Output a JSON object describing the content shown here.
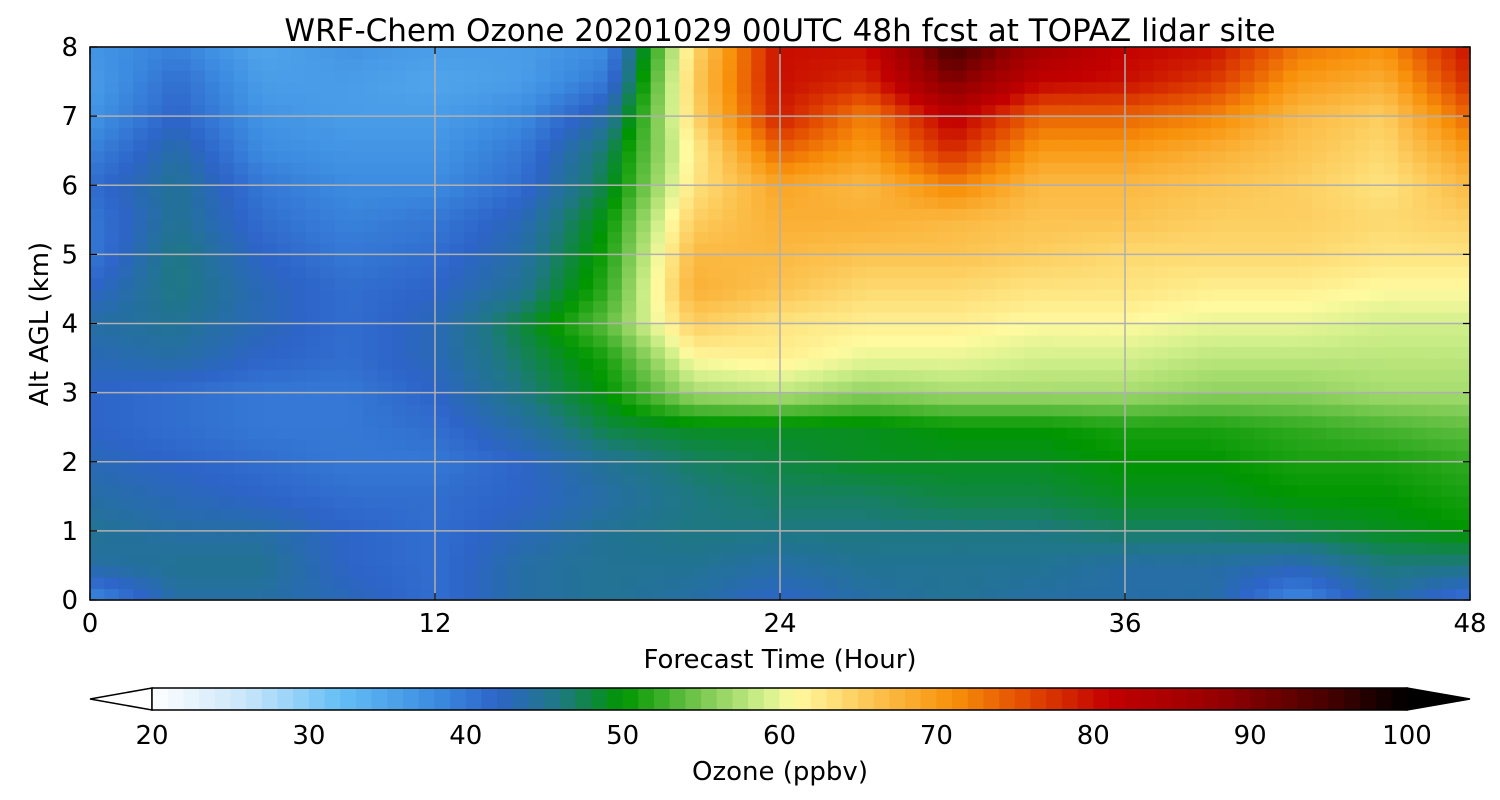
{
  "chart_data": {
    "type": "heatmap",
    "title": "WRF-Chem Ozone 20201029 00UTC 48h fcst at TOPAZ lidar site",
    "xlabel": "Forecast Time (Hour)",
    "ylabel": "Alt AGL (km)",
    "xlim": [
      0,
      48
    ],
    "ylim": [
      0,
      8
    ],
    "x_ticks": [
      "0",
      "12",
      "24",
      "36",
      "48"
    ],
    "y_ticks": [
      "0",
      "1",
      "2",
      "3",
      "4",
      "5",
      "6",
      "7",
      "8"
    ],
    "grid": true,
    "colorbar": {
      "label": "Ozone  (ppbv)",
      "range": [
        20,
        100
      ],
      "extend": "both",
      "ticks": [
        "20",
        "30",
        "40",
        "50",
        "60",
        "70",
        "80",
        "90",
        "100"
      ]
    },
    "x": [
      0,
      3,
      6,
      9,
      12,
      15,
      18,
      21,
      24,
      27,
      30,
      33,
      36,
      39,
      42,
      45,
      48
    ],
    "y": [
      0,
      0.5,
      1,
      1.5,
      2,
      2.5,
      3,
      3.5,
      4,
      4.5,
      5,
      5.5,
      6,
      6.5,
      7,
      7.5,
      8
    ],
    "z": [
      [
        38,
        44,
        44,
        43,
        41,
        44,
        45,
        44,
        42,
        44,
        45,
        44,
        44,
        44,
        38,
        44,
        40
      ],
      [
        44,
        45,
        45,
        42,
        41,
        44,
        45,
        45,
        44,
        45,
        45,
        45,
        44,
        44,
        43,
        46,
        46
      ],
      [
        45,
        44,
        44,
        42,
        41,
        43,
        45,
        46,
        46,
        46,
        46,
        46,
        47,
        47,
        48,
        49,
        50
      ],
      [
        44,
        43,
        42,
        41,
        41,
        42,
        44,
        46,
        47,
        47,
        48,
        48,
        49,
        49,
        50,
        50,
        51
      ],
      [
        43,
        42,
        41,
        40,
        40,
        42,
        45,
        47,
        48,
        49,
        49,
        49,
        50,
        50,
        51,
        51,
        52
      ],
      [
        42,
        41,
        40,
        40,
        41,
        44,
        48,
        49,
        49,
        49,
        50,
        50,
        51,
        51,
        52,
        53,
        54
      ],
      [
        42,
        41,
        40,
        40,
        42,
        46,
        50,
        57,
        58,
        56,
        57,
        57,
        57,
        56,
        56,
        57,
        57
      ],
      [
        43,
        44,
        42,
        41,
        43,
        47,
        51,
        61,
        62,
        60,
        60,
        59,
        59,
        58,
        58,
        58,
        58
      ],
      [
        44,
        45,
        43,
        41,
        43,
        48,
        54,
        65,
        63,
        62,
        62,
        61,
        61,
        60,
        60,
        59,
        59
      ],
      [
        42,
        46,
        43,
        41,
        42,
        45,
        52,
        68,
        66,
        64,
        64,
        63,
        63,
        62,
        62,
        61,
        61
      ],
      [
        40,
        46,
        42,
        40,
        41,
        44,
        51,
        67,
        67,
        66,
        66,
        65,
        64,
        64,
        64,
        63,
        63
      ],
      [
        40,
        45,
        41,
        39,
        40,
        43,
        50,
        65,
        68,
        68,
        67,
        66,
        66,
        65,
        65,
        64,
        65
      ],
      [
        41,
        45,
        40,
        38,
        38,
        41,
        48,
        63,
        69,
        67,
        72,
        67,
        67,
        66,
        65,
        63,
        67
      ],
      [
        39,
        44,
        38,
        37,
        37,
        40,
        47,
        62,
        74,
        70,
        78,
        70,
        70,
        68,
        66,
        64,
        70
      ],
      [
        37,
        42,
        37,
        36,
        36,
        38,
        44,
        64,
        79,
        72,
        82,
        74,
        74,
        72,
        67,
        65,
        74
      ],
      [
        36,
        41,
        36,
        36,
        35,
        36,
        40,
        65,
        80,
        78,
        90,
        81,
        80,
        77,
        70,
        68,
        78
      ],
      [
        37,
        39,
        35,
        37,
        36,
        36,
        38,
        64,
        80,
        80,
        95,
        86,
        81,
        80,
        73,
        71,
        80
      ]
    ]
  }
}
